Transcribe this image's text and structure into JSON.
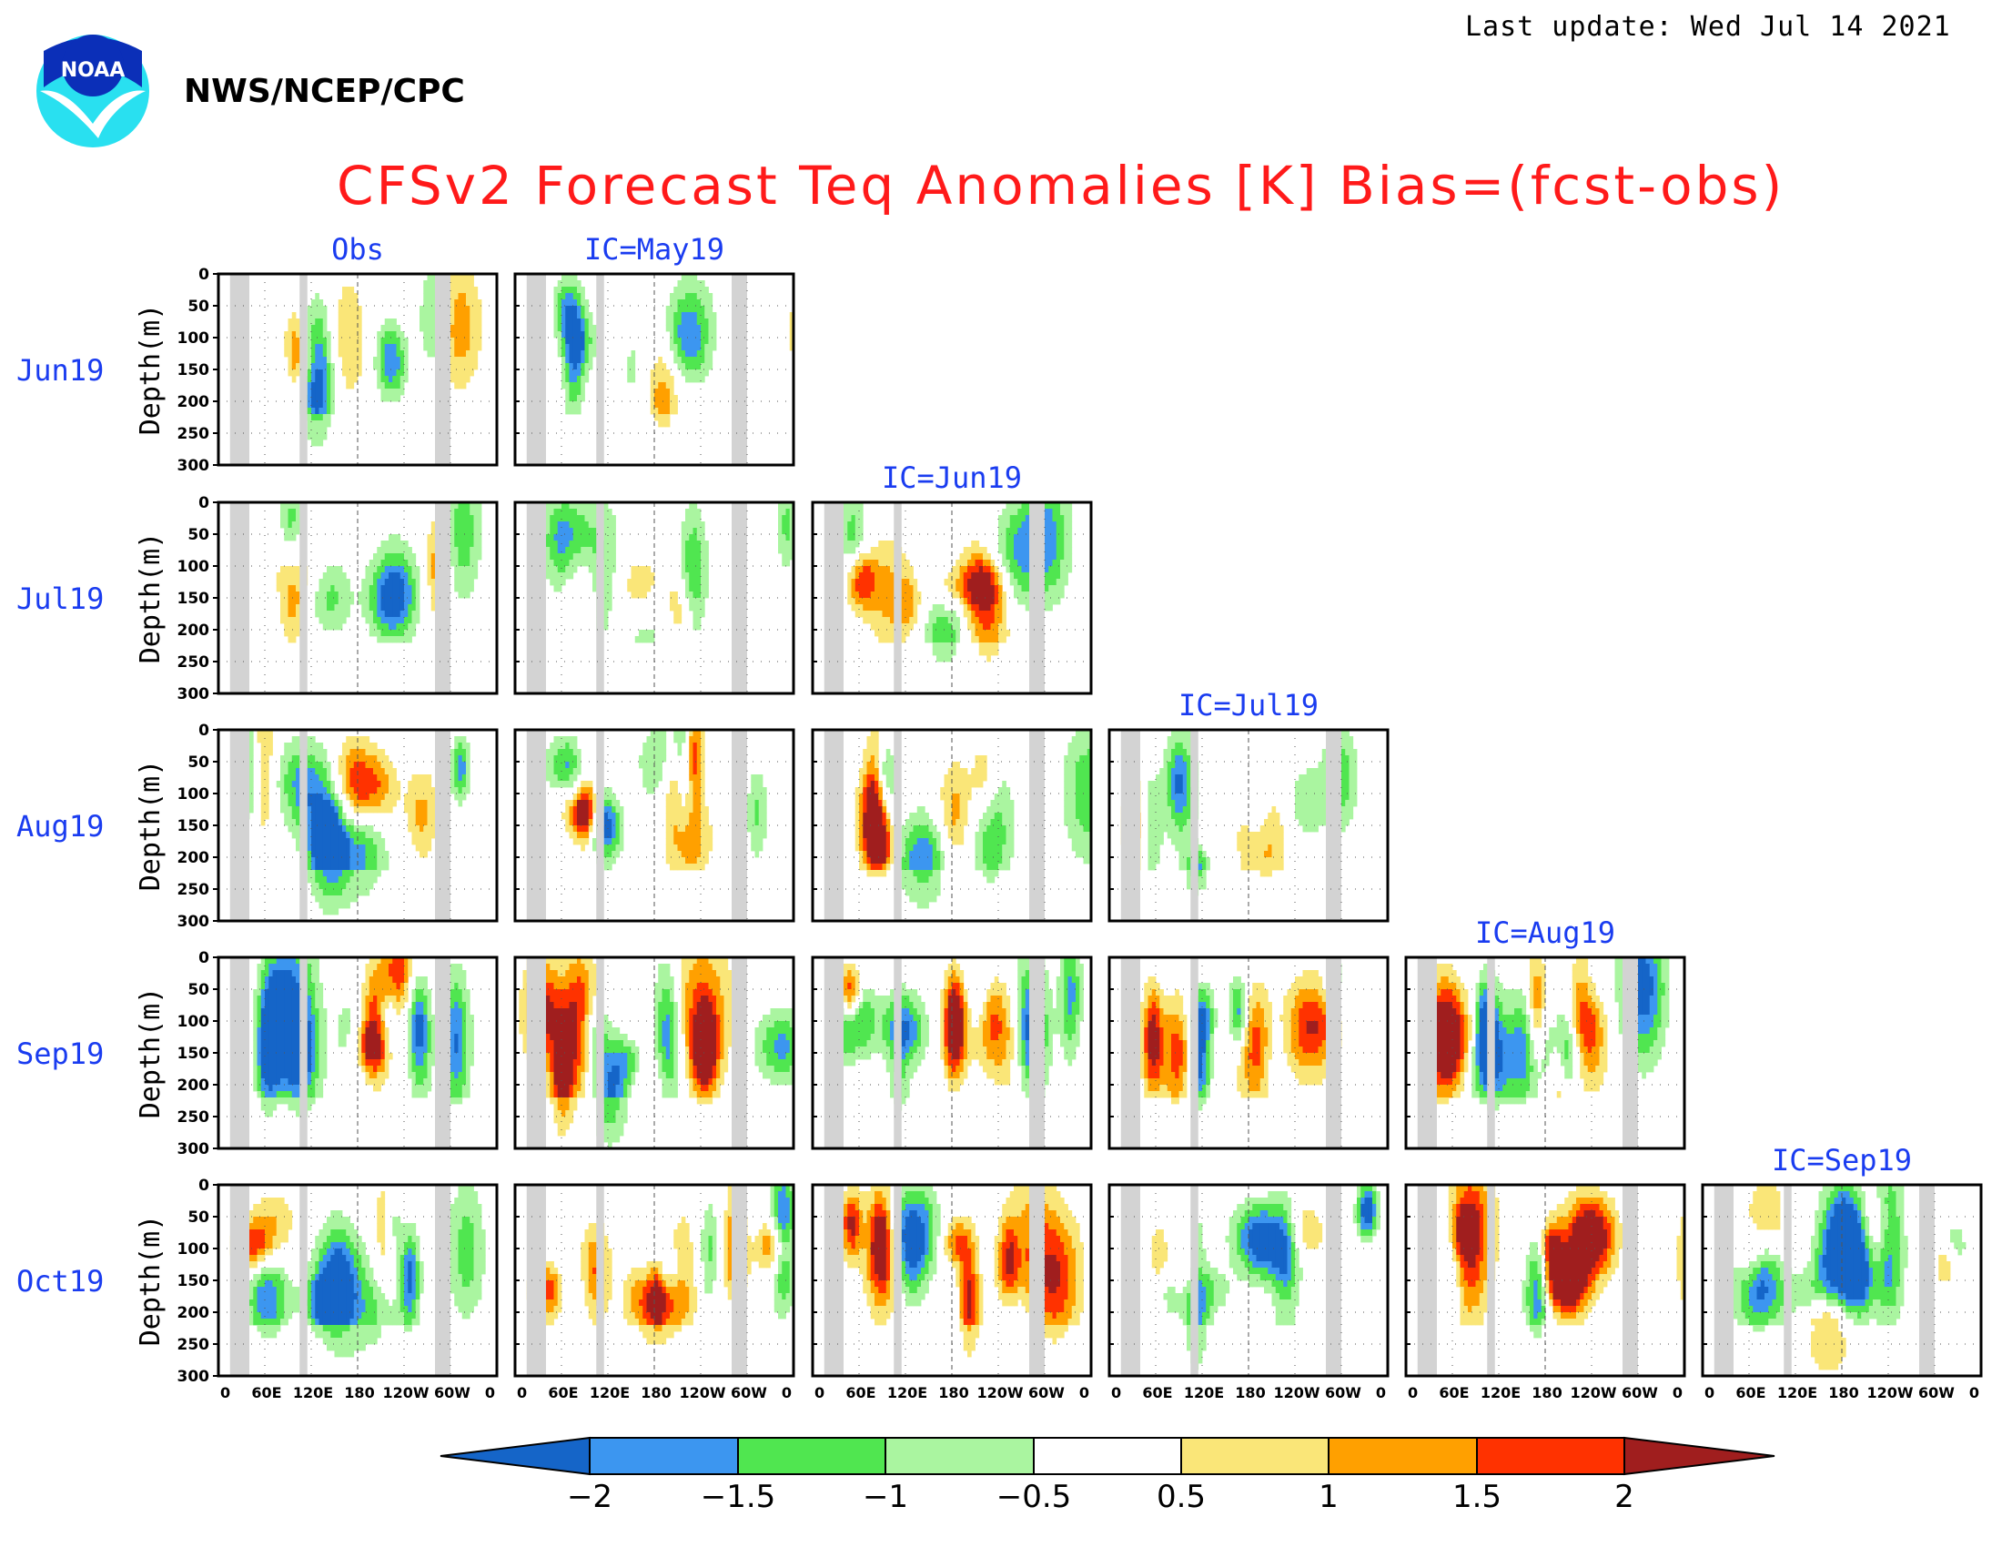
{
  "header": {
    "last_update": "Last update: Wed Jul 14 2021",
    "agency": "NWS/NCEP/CPC",
    "logo_text": "NOAA",
    "title": "CFSv2 Forecast Teq Anomalies [K] Bias=(fcst-obs)"
  },
  "colors": {
    "title": "#ff1a1a",
    "labels": "#1a3cf0",
    "land_mask": "#d3d3d3",
    "palette": [
      "#1565c8",
      "#3c96f0",
      "#50e650",
      "#aaf5a0",
      "#ffffff",
      "#fae678",
      "#ffa000",
      "#ff3200",
      "#a01e1e"
    ]
  },
  "chart_data": {
    "type": "heatmap",
    "grid": {
      "row_labels": [
        "Jun19",
        "Jul19",
        "Aug19",
        "Sep19",
        "Oct19"
      ],
      "column_titles": [
        "Obs",
        "IC=May19",
        "IC=Jun19",
        "IC=Jul19",
        "IC=Aug19",
        "IC=Sep19"
      ],
      "layout": "lower-triangular: row r shows Obs plus forecasts from each IC up to its own column"
    },
    "ylabel": "Depth(m)",
    "yticks": [
      "0",
      "50",
      "100",
      "150",
      "200",
      "250",
      "300"
    ],
    "xticks": [
      "0",
      "60E",
      "120E",
      "180",
      "120W",
      "60W",
      "0"
    ],
    "ylim": [
      0,
      300
    ],
    "colorbar": {
      "tick_labels": [
        "−2",
        "−1.5",
        "−1",
        "−0.5",
        "0.5",
        "1",
        "1.5",
        "2"
      ],
      "levels": [
        -2,
        -1.5,
        -1,
        -0.5,
        0.5,
        1,
        1.5,
        2
      ],
      "extend": "both"
    },
    "land_mask_lon": [
      [
        15,
        40
      ],
      [
        105,
        115
      ],
      [
        280,
        300
      ]
    ]
  }
}
